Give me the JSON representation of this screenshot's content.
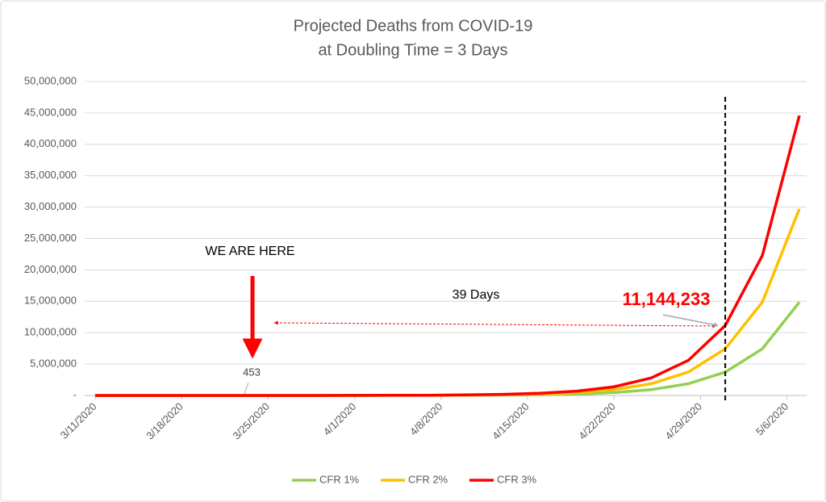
{
  "chart_data": {
    "type": "line",
    "title": "Projected Deaths from COVID-19",
    "subtitle": "at Doubling Time = 3 Days",
    "x": [
      "3/11/2020",
      "3/14/2020",
      "3/17/2020",
      "3/20/2020",
      "3/23/2020",
      "3/26/2020",
      "3/29/2020",
      "4/1/2020",
      "4/4/2020",
      "4/7/2020",
      "4/10/2020",
      "4/13/2020",
      "4/16/2020",
      "4/19/2020",
      "4/22/2020",
      "4/25/2020",
      "4/28/2020",
      "5/1/2020",
      "5/4/2020",
      "5/7/2020"
    ],
    "series": [
      {
        "name": "CFR 1%",
        "color": "#92d050",
        "values": [
          28,
          57,
          113,
          227,
          453,
          907,
          1814,
          3628,
          7255,
          14511,
          29021,
          58043,
          116086,
          232172,
          464343,
          928686,
          1857372,
          3714744,
          7429489,
          14858977
        ]
      },
      {
        "name": "CFR 2%",
        "color": "#ffc000",
        "values": [
          57,
          113,
          227,
          453,
          907,
          1814,
          3628,
          7255,
          14511,
          29021,
          58043,
          116086,
          232172,
          464343,
          928686,
          1857372,
          3714744,
          7429489,
          14858977,
          29717955
        ]
      },
      {
        "name": "CFR 3%",
        "color": "#ff0000",
        "values": [
          85,
          170,
          340,
          680,
          1360,
          2721,
          5441,
          10883,
          21766,
          43532,
          87064,
          174129,
          348257,
          696515,
          1393029,
          2786058,
          5572117,
          11144233,
          22288466,
          44576932
        ]
      }
    ],
    "ylim": [
      0,
      50000000
    ],
    "yticks": [
      {
        "value": 0,
        "label": "-"
      },
      {
        "value": 5000000,
        "label": "5,000,000"
      },
      {
        "value": 10000000,
        "label": "10,000,000"
      },
      {
        "value": 15000000,
        "label": "15,000,000"
      },
      {
        "value": 20000000,
        "label": "20,000,000"
      },
      {
        "value": 25000000,
        "label": "25,000,000"
      },
      {
        "value": 30000000,
        "label": "30,000,000"
      },
      {
        "value": 35000000,
        "label": "35,000,000"
      },
      {
        "value": 40000000,
        "label": "40,000,000"
      },
      {
        "value": 45000000,
        "label": "45,000,000"
      },
      {
        "value": 50000000,
        "label": "50,000,000"
      }
    ],
    "xticks": [
      "3/11/2020",
      "3/18/2020",
      "3/25/2020",
      "4/1/2020",
      "4/8/2020",
      "4/15/2020",
      "4/22/2020",
      "4/29/2020",
      "5/6/2020"
    ],
    "grid": true,
    "legend": "bottom",
    "annotations": {
      "here": "WE ARE HERE",
      "days": "39 Days",
      "peak": "11,144,233",
      "start": "453"
    }
  }
}
